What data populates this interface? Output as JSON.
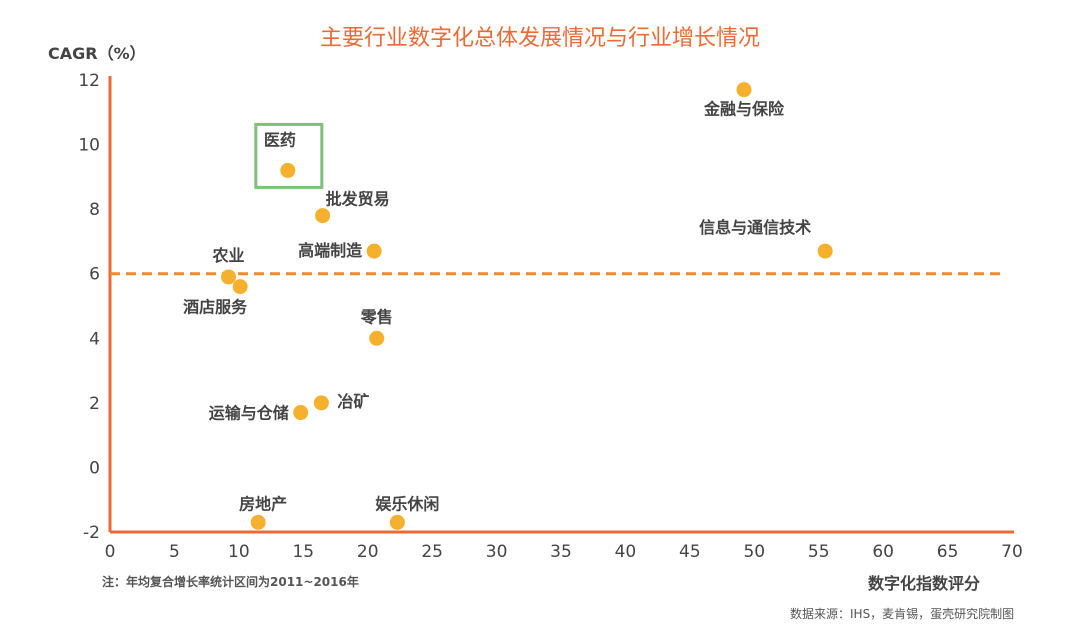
{
  "title": "主要行业数字化总体发展情况与行业增长情况",
  "note": "注：年均复合增长率统计区间为2011~2016年",
  "source": "数据来源：IHS，麦肯锡，蛋壳研究院制图",
  "chart_data": {
    "type": "scatter",
    "xlabel": "数字化指数评分",
    "ylabel": "CAGR（%）",
    "xlim": [
      0,
      70
    ],
    "ylim": [
      -2,
      12
    ],
    "xticks": [
      "0",
      "5",
      "10",
      "15",
      "20",
      "25",
      "30",
      "35",
      "40",
      "45",
      "50",
      "55",
      "60",
      "65",
      "70"
    ],
    "yticks": [
      "12",
      "10",
      "8",
      "6",
      "4",
      "2",
      "0",
      "-2"
    ],
    "reference_line": {
      "axis": "y",
      "value": 6,
      "style": "dashed",
      "color": "#f08a2c"
    },
    "points_color": "#f5b02e",
    "axis_color": "#ee6a35",
    "highlight_color": "#7cc07a",
    "points": [
      {
        "name": "金融与保险",
        "x": 49.2,
        "y": 11.7
      },
      {
        "name": "医药",
        "x": 13.8,
        "y": 9.2,
        "highlight": true
      },
      {
        "name": "批发贸易",
        "x": 16.5,
        "y": 7.8
      },
      {
        "name": "高端制造",
        "x": 20.5,
        "y": 6.7
      },
      {
        "name": "信息与通信技术",
        "x": 55.5,
        "y": 6.7
      },
      {
        "name": "农业",
        "x": 9.2,
        "y": 5.9
      },
      {
        "name": "酒店服务",
        "x": 10.1,
        "y": 5.6
      },
      {
        "name": "零售",
        "x": 20.7,
        "y": 4.0
      },
      {
        "name": "冶矿",
        "x": 16.4,
        "y": 2.0
      },
      {
        "name": "运输与仓储",
        "x": 14.8,
        "y": 1.7
      },
      {
        "name": "房地产",
        "x": 11.5,
        "y": -1.7
      },
      {
        "name": "娱乐休闲",
        "x": 22.3,
        "y": -1.7
      }
    ]
  }
}
